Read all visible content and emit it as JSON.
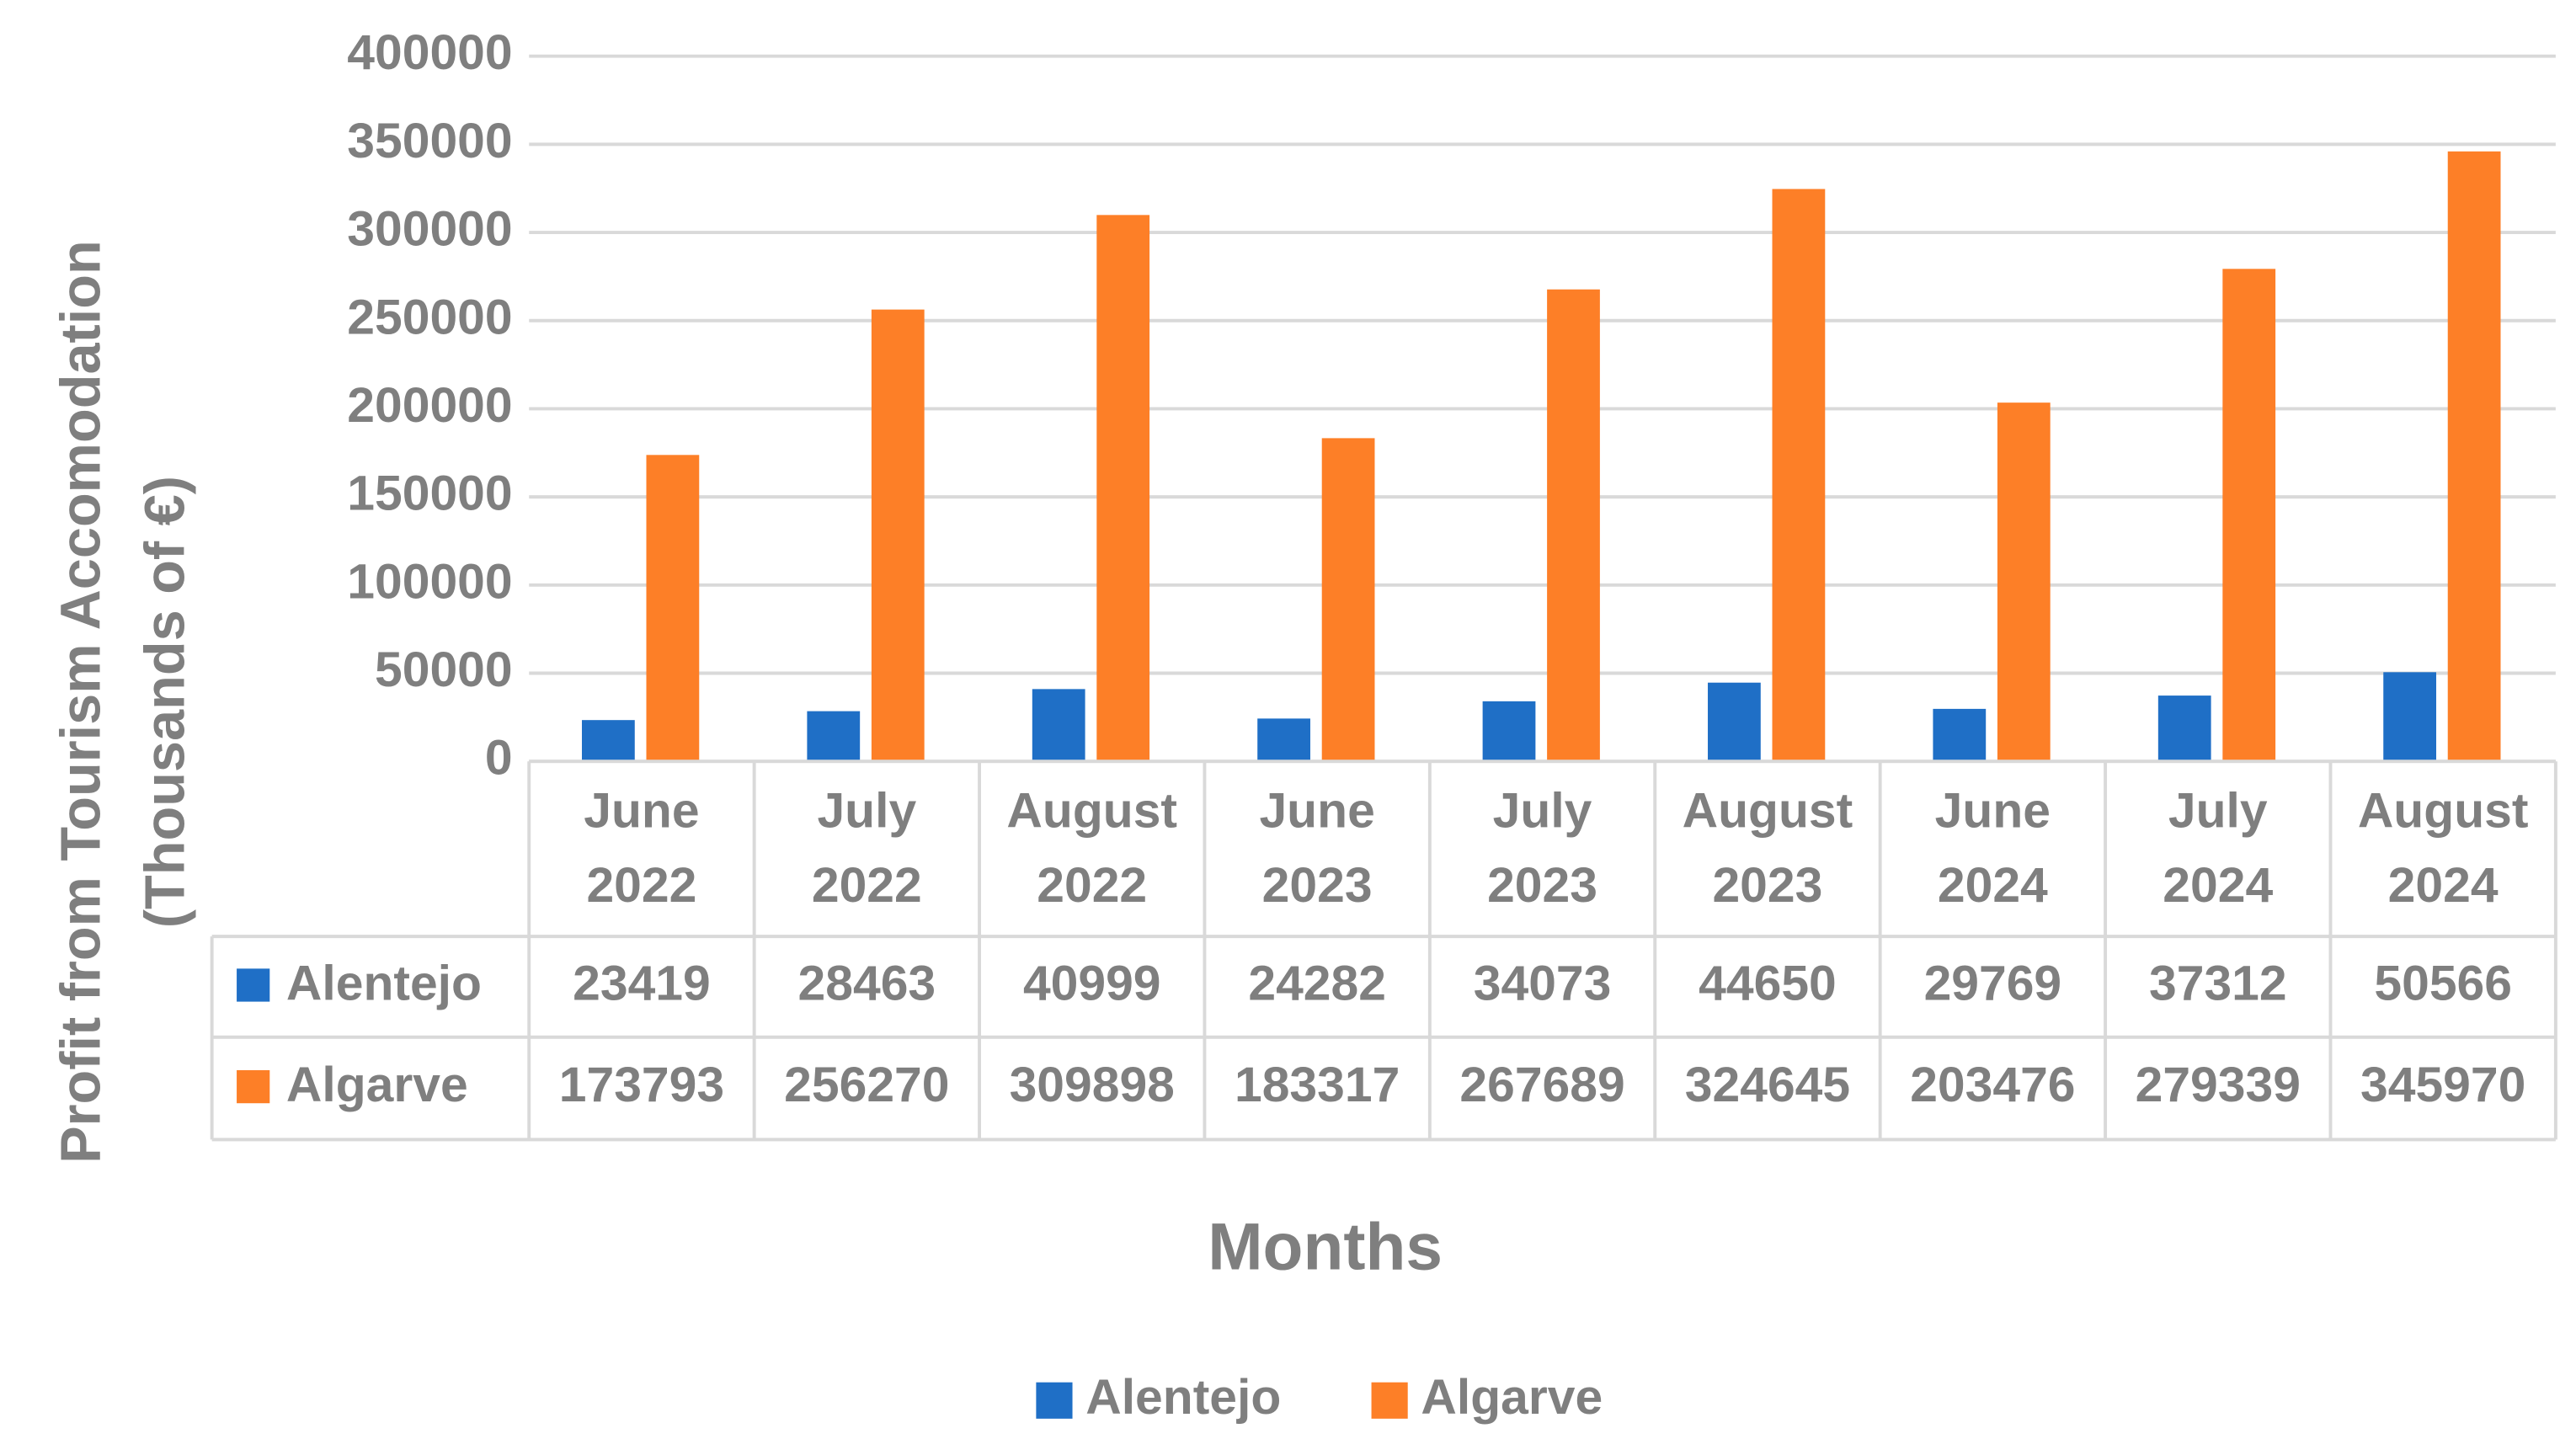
{
  "chart_data": {
    "type": "bar",
    "y_label": "Profit from Tourism Accomodation (Thousands of €)",
    "x_label": "Months",
    "categories": [
      "June 2022",
      "July 2022",
      "August 2022",
      "June 2023",
      "July 2023",
      "August 2023",
      "June 2024",
      "July 2024",
      "August 2024"
    ],
    "series": [
      {
        "name": "Alentejo",
        "color": "#1f6fc6",
        "values": [
          23419,
          28463,
          40999,
          24282,
          34073,
          44650,
          29769,
          37312,
          50566
        ]
      },
      {
        "name": "Algarve",
        "color": "#fd7f27",
        "values": [
          173793,
          256270,
          309898,
          183317,
          267689,
          324645,
          203476,
          279339,
          345970
        ]
      }
    ],
    "ylim": [
      0,
      400000
    ],
    "yticks": [
      0,
      50000,
      100000,
      150000,
      200000,
      250000,
      300000,
      350000,
      400000
    ],
    "grid": true,
    "legend": "bottom",
    "data_table": true
  }
}
